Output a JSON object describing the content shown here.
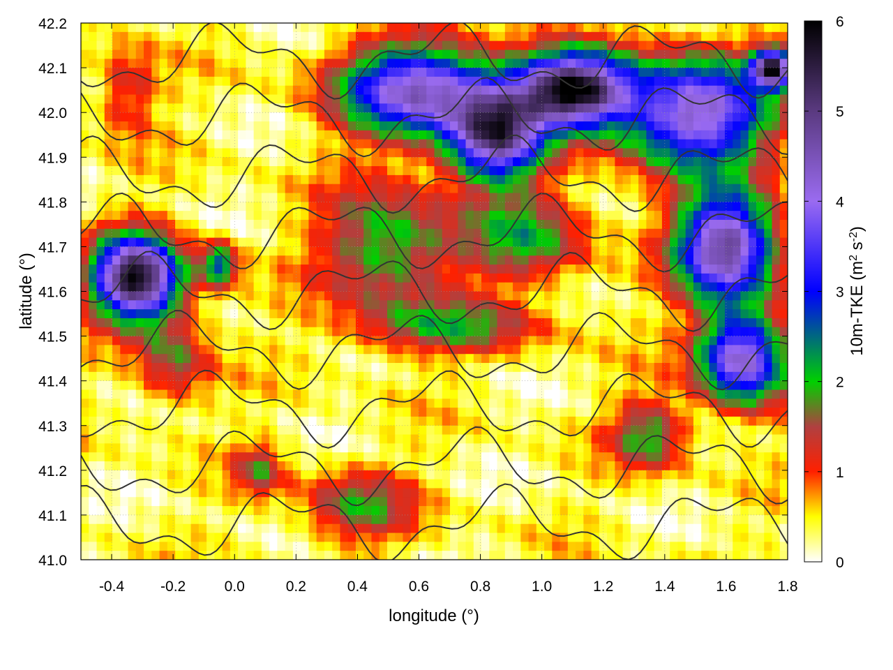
{
  "chart_data": {
    "type": "heatmap",
    "title": "",
    "xlabel": "longitude (°)",
    "ylabel": "latitude (°)",
    "colorbar_label_main": "10m-TKE (m",
    "colorbar_label_exp1": "2",
    "colorbar_label_mid": " s",
    "colorbar_label_exp2": "-2",
    "colorbar_label_end": ")",
    "xlim": [
      -0.5,
      1.8
    ],
    "ylim": [
      41.0,
      42.2
    ],
    "clim": [
      0,
      6
    ],
    "x_ticks": [
      "-0.4",
      "-0.2",
      "0.0",
      "0.2",
      "0.4",
      "0.6",
      "0.8",
      "1.0",
      "1.2",
      "1.4",
      "1.6",
      "1.8"
    ],
    "y_ticks": [
      "41.0",
      "41.1",
      "41.2",
      "41.3",
      "41.4",
      "41.5",
      "41.6",
      "41.7",
      "41.8",
      "41.9",
      "42.0",
      "42.1",
      "42.2"
    ],
    "c_ticks": [
      "0",
      "1",
      "2",
      "3",
      "4",
      "5",
      "6"
    ],
    "grid": true,
    "colormap": [
      {
        "v": 0.0,
        "color": "#ffffff"
      },
      {
        "v": 0.5,
        "color": "#ffff00"
      },
      {
        "v": 1.0,
        "color": "#ff2000"
      },
      {
        "v": 1.5,
        "color": "#b04040"
      },
      {
        "v": 2.0,
        "color": "#00d000"
      },
      {
        "v": 3.0,
        "color": "#0000ff"
      },
      {
        "v": 4.0,
        "color": "#9a6bf0"
      },
      {
        "v": 5.0,
        "color": "#5a3a80"
      },
      {
        "v": 6.0,
        "color": "#000000"
      }
    ],
    "hotspots": [
      {
        "lon": -0.32,
        "lat": 41.63,
        "value": 5.5,
        "rlon": 0.14,
        "rlat": 0.09
      },
      {
        "lon": -0.05,
        "lat": 41.66,
        "value": 2.2,
        "rlon": 0.06,
        "rlat": 0.05
      },
      {
        "lon": 0.5,
        "lat": 41.7,
        "value": 1.8,
        "rlon": 0.22,
        "rlat": 0.14
      },
      {
        "lon": 0.95,
        "lat": 41.72,
        "value": 1.6,
        "rlon": 0.2,
        "rlat": 0.1
      },
      {
        "lon": 0.6,
        "lat": 42.05,
        "value": 4.0,
        "rlon": 0.25,
        "rlat": 0.1
      },
      {
        "lon": 0.85,
        "lat": 41.95,
        "value": 4.5,
        "rlon": 0.15,
        "rlat": 0.1
      },
      {
        "lon": 1.1,
        "lat": 42.05,
        "value": 5.5,
        "rlon": 0.18,
        "rlat": 0.08
      },
      {
        "lon": 1.5,
        "lat": 42.0,
        "value": 4.0,
        "rlon": 0.25,
        "rlat": 0.12
      },
      {
        "lon": 1.6,
        "lat": 41.7,
        "value": 4.5,
        "rlon": 0.16,
        "rlat": 0.12
      },
      {
        "lon": 1.65,
        "lat": 41.45,
        "value": 4.0,
        "rlon": 0.14,
        "rlat": 0.1
      },
      {
        "lon": 0.7,
        "lat": 41.52,
        "value": 1.4,
        "rlon": 0.3,
        "rlat": 0.06
      },
      {
        "lon": 0.4,
        "lat": 41.12,
        "value": 1.4,
        "rlon": 0.18,
        "rlat": 0.08
      },
      {
        "lon": -0.2,
        "lat": 41.45,
        "value": 1.3,
        "rlon": 0.12,
        "rlat": 0.1
      },
      {
        "lon": 1.35,
        "lat": 41.28,
        "value": 1.6,
        "rlon": 0.12,
        "rlat": 0.08
      },
      {
        "lon": 0.08,
        "lat": 41.2,
        "value": 1.2,
        "rlon": 0.08,
        "rlat": 0.06
      },
      {
        "lon": -0.35,
        "lat": 42.05,
        "value": 1.0,
        "rlon": 0.1,
        "rlat": 0.1
      },
      {
        "lon": 1.75,
        "lat": 42.1,
        "value": 5.0,
        "rlon": 0.06,
        "rlat": 0.04
      }
    ]
  }
}
